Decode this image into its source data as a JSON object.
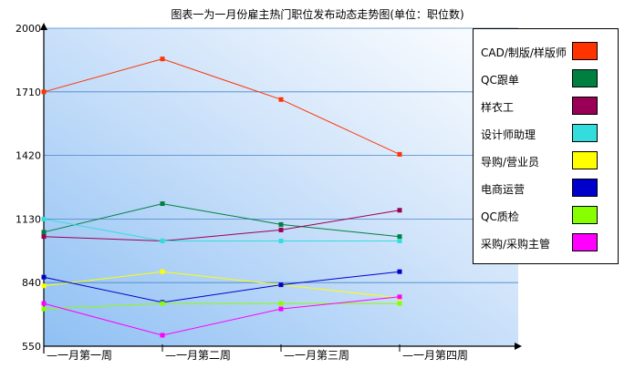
{
  "chart_data": {
    "type": "line",
    "title": "图表一为一月份雇主热门职位发布动态走势图(单位：职位数)",
    "categories": [
      "一月第一周",
      "一月第二周",
      "一月第三周",
      "一月第四周"
    ],
    "yticks": [
      "2000",
      "1710",
      "1420",
      "1130",
      "840",
      "550"
    ],
    "ylim": [
      550,
      2000
    ],
    "grid": true,
    "legend_position": "right",
    "series": [
      {
        "name": "CAD/制版/样版师",
        "color": "#ff3300",
        "values": [
          1710,
          1860,
          1675,
          1425
        ]
      },
      {
        "name": "QC跟单",
        "color": "#008040",
        "values": [
          1070,
          1200,
          1105,
          1050
        ]
      },
      {
        "name": "样衣工",
        "color": "#990055",
        "values": [
          1050,
          1030,
          1080,
          1170
        ]
      },
      {
        "name": "设计师助理",
        "color": "#33dddd",
        "values": [
          1130,
          1030,
          1030,
          1030
        ]
      },
      {
        "name": "导购/营业员",
        "color": "#ffff00",
        "values": [
          825,
          890,
          830,
          770
        ]
      },
      {
        "name": "电商运营",
        "color": "#0000cc",
        "values": [
          865,
          750,
          830,
          890
        ]
      },
      {
        "name": "QC质检",
        "color": "#88ff00",
        "values": [
          720,
          745,
          745,
          745
        ]
      },
      {
        "name": "采购/采购主管",
        "color": "#ff00ff",
        "values": [
          745,
          600,
          720,
          775
        ]
      }
    ]
  }
}
